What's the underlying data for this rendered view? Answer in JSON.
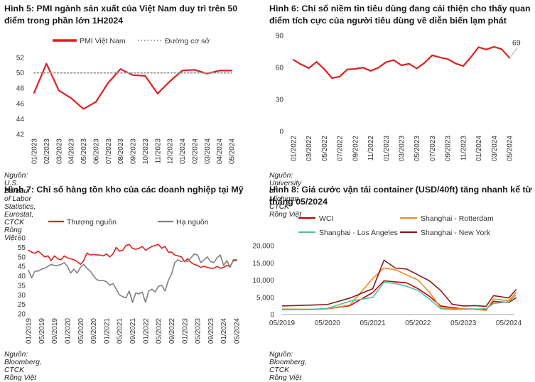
{
  "chart_data": [
    {
      "id": "c5",
      "type": "line",
      "title": "Hình 5: PMI ngành sản xuất của Việt Nam duy trì trên 50 điểm trong phần lớn 1H2024",
      "source": "Nguồn: U.S. Bureau of Labor Statistics, Eurostat, CTCK Rồng Việt",
      "ylim": [
        42,
        52
      ],
      "yticks": [
        42,
        44,
        46,
        48,
        50,
        52
      ],
      "xticks": [
        "01/2023",
        "02/2023",
        "03/2023",
        "04/2023",
        "05/2023",
        "06/2023",
        "07/2023",
        "08/2023",
        "09/2023",
        "10/2023",
        "11/2023",
        "12/2023",
        "01/2024",
        "02/2024",
        "03/2024",
        "04/2024",
        "05/2024"
      ],
      "x": [
        "01/2023",
        "02/2023",
        "03/2023",
        "04/2023",
        "05/2023",
        "06/2023",
        "07/2023",
        "08/2023",
        "09/2023",
        "10/2023",
        "11/2023",
        "12/2023",
        "01/2024",
        "02/2024",
        "03/2024",
        "04/2024",
        "05/2024"
      ],
      "series": [
        {
          "name": "PMI Việt Nam",
          "color": "#e01e1e",
          "style": "solid",
          "values": [
            47.4,
            51.2,
            47.7,
            46.7,
            45.3,
            46.2,
            48.7,
            50.5,
            49.7,
            49.6,
            47.3,
            48.9,
            50.3,
            50.4,
            49.9,
            50.3,
            50.3
          ]
        },
        {
          "name": "Đường cơ sở",
          "color": "#9a9a9a",
          "style": "dotted",
          "values": [
            50,
            50,
            50,
            50,
            50,
            50,
            50,
            50,
            50,
            50,
            50,
            50,
            50,
            50,
            50,
            50,
            50
          ]
        }
      ]
    },
    {
      "id": "c6",
      "type": "line",
      "title": "Hình 6: Chỉ số niềm tin tiêu dùng đang cải thiện cho thấy quan điểm tích cực của người tiêu dùng về diễn biến lạm phát",
      "source": "Nguồn: University of Michigan, CTCK Rồng Việt",
      "ylim": [
        0,
        90
      ],
      "yticks": [
        0,
        30,
        60,
        90
      ],
      "xticks": [
        "01/2022",
        "03/2022",
        "05/2022",
        "07/2022",
        "09/2022",
        "11/2022",
        "01/2023",
        "03/2023",
        "05/2023",
        "07/2023",
        "09/2023",
        "11/2023",
        "01/2024",
        "03/2024",
        "05/2024"
      ],
      "x": [
        "01/2022",
        "02/2022",
        "03/2022",
        "04/2022",
        "05/2022",
        "06/2022",
        "07/2022",
        "08/2022",
        "09/2022",
        "10/2022",
        "11/2022",
        "12/2022",
        "01/2023",
        "02/2023",
        "03/2023",
        "04/2023",
        "05/2023",
        "06/2023",
        "07/2023",
        "08/2023",
        "09/2023",
        "10/2023",
        "11/2023",
        "12/2023",
        "01/2024",
        "02/2024",
        "03/2024",
        "04/2024",
        "05/2024"
      ],
      "annotation": "69",
      "series": [
        {
          "name": "",
          "color": "#e01e1e",
          "style": "solid",
          "values": [
            67.2,
            62.8,
            59.4,
            65.2,
            58.4,
            50.0,
            51.5,
            58.2,
            58.6,
            59.9,
            56.8,
            59.7,
            64.9,
            67.0,
            62.0,
            63.5,
            59.0,
            64.4,
            71.5,
            69.4,
            67.9,
            63.8,
            61.3,
            69.7,
            79.0,
            76.9,
            79.4,
            77.2,
            69.1
          ]
        }
      ]
    },
    {
      "id": "c7",
      "type": "line",
      "title": "Hình 7: Chỉ số hàng tồn kho của các doanh nghiệp tại Mỹ",
      "source": "Nguồn: Bloomberg, CTCK Rồng Việt",
      "ylim": [
        20,
        60
      ],
      "yticks": [
        20,
        25,
        30,
        35,
        40,
        45,
        50,
        55,
        60
      ],
      "xticks": [
        "01/2019",
        "05/2019",
        "09/2019",
        "01/2020",
        "05/2020",
        "09/2020",
        "01/2021",
        "05/2021",
        "09/2021",
        "01/2022",
        "05/2022",
        "09/2022",
        "01/2023",
        "05/2023",
        "09/2023",
        "01/2024",
        "05/2024"
      ],
      "x": [
        "01/2019",
        "02/2019",
        "03/2019",
        "04/2019",
        "05/2019",
        "06/2019",
        "07/2019",
        "08/2019",
        "09/2019",
        "10/2019",
        "11/2019",
        "12/2019",
        "01/2020",
        "02/2020",
        "03/2020",
        "04/2020",
        "05/2020",
        "06/2020",
        "07/2020",
        "08/2020",
        "09/2020",
        "10/2020",
        "11/2020",
        "12/2020",
        "01/2021",
        "02/2021",
        "03/2021",
        "04/2021",
        "05/2021",
        "06/2021",
        "07/2021",
        "08/2021",
        "09/2021",
        "10/2021",
        "11/2021",
        "12/2021",
        "01/2022",
        "02/2022",
        "03/2022",
        "04/2022",
        "05/2022",
        "06/2022",
        "07/2022",
        "08/2022",
        "09/2022",
        "10/2022",
        "11/2022",
        "12/2022",
        "01/2023",
        "02/2023",
        "03/2023",
        "04/2023",
        "05/2023",
        "06/2023",
        "07/2023",
        "08/2023",
        "09/2023",
        "10/2023",
        "11/2023",
        "12/2023",
        "01/2024",
        "02/2024",
        "03/2024",
        "04/2024",
        "05/2024"
      ],
      "series": [
        {
          "name": "Thượng nguồn",
          "color": "#e01e1e",
          "values": [
            53.5,
            52.5,
            51.8,
            53.0,
            51.5,
            50.0,
            50.5,
            48.0,
            50.5,
            49.0,
            48.5,
            50.5,
            49.5,
            49.0,
            48.5,
            47.5,
            46.0,
            48.0,
            52.0,
            51.0,
            51.2,
            51.0,
            51.0,
            50.5,
            51.5,
            50.0,
            51.5,
            55.0,
            53.0,
            53.5,
            56.0,
            56.5,
            54.5,
            54.0,
            54.5,
            55.5,
            53.5,
            54.5,
            55.5,
            56.0,
            56.5,
            54.5,
            55.5,
            52.5,
            52.5,
            51.0,
            50.5,
            50.0,
            47.5,
            49.0,
            47.0,
            46.0,
            45.5,
            44.5,
            45.0,
            44.5,
            44.0,
            44.0,
            45.0,
            44.0,
            44.5,
            45.5,
            45.0,
            48.0,
            48.0
          ]
        },
        {
          "name": "Hạ nguồn",
          "color": "#808080",
          "values": [
            43.0,
            39.0,
            42.5,
            42.5,
            43.5,
            44.0,
            45.0,
            46.0,
            45.5,
            45.5,
            46.0,
            47.0,
            45.0,
            41.5,
            43.5,
            41.5,
            44.5,
            46.0,
            44.0,
            42.5,
            40.0,
            38.0,
            37.5,
            37.5,
            37.0,
            35.0,
            36.0,
            33.0,
            30.0,
            29.0,
            28.5,
            32.0,
            26.0,
            31.0,
            30.5,
            31.5,
            26.0,
            32.0,
            33.0,
            31.5,
            34.5,
            35.0,
            32.0,
            37.5,
            41.0,
            47.0,
            48.5,
            47.5,
            48.0,
            47.5,
            49.5,
            51.5,
            51.0,
            47.0,
            48.5,
            50.0,
            47.5,
            47.0,
            49.5,
            51.0,
            45.5,
            48.0,
            44.5,
            48.5,
            48.5
          ]
        }
      ]
    },
    {
      "id": "c8",
      "type": "line",
      "title": "Hình 8: Giá cước vận tải container (USD/40ft) tăng nhanh kể từ tháng 05/2024",
      "source": "Nguồn: Bloomberg, CTCK Rồng Việt",
      "ylim": [
        0,
        20000
      ],
      "yticks": [
        0,
        5000,
        10000,
        15000,
        20000
      ],
      "ytick_labels": [
        "0",
        "5,000",
        "10,000",
        "15,000",
        "20,000"
      ],
      "xticks": [
        "05/2019",
        "05/2020",
        "05/2021",
        "05/2022",
        "05/2023",
        "05/2024"
      ],
      "x": [
        "05/2019",
        "11/2019",
        "05/2020",
        "11/2020",
        "05/2021",
        "08/2021",
        "11/2021",
        "02/2022",
        "05/2022",
        "08/2022",
        "11/2022",
        "02/2023",
        "05/2023",
        "08/2023",
        "11/2023",
        "01/2024",
        "05/2024",
        "07/2024"
      ],
      "series": [
        {
          "name": "WCI",
          "color": "#c00000",
          "values": [
            1450,
            1400,
            1700,
            2600,
            6400,
            9800,
            9500,
            9200,
            7500,
            5300,
            2500,
            2000,
            1650,
            1600,
            1450,
            3800,
            3500,
            4900
          ]
        },
        {
          "name": "Shanghai - Rotterdam",
          "color": "#f08a1f",
          "values": [
            1600,
            1550,
            1650,
            2800,
            10500,
            13500,
            13000,
            11500,
            10000,
            6500,
            2000,
            1600,
            1700,
            1500,
            1200,
            4500,
            4000,
            6500
          ]
        },
        {
          "name": "Shanghai - Los Angeles",
          "color": "#4ec0a8",
          "values": [
            1400,
            1400,
            1800,
            3900,
            5000,
            9400,
            9000,
            8200,
            7000,
            4500,
            1700,
            1400,
            1500,
            1600,
            1700,
            3200,
            3700,
            5800
          ]
        },
        {
          "name": "Shanghai - New York",
          "color": "#8b1a1a",
          "values": [
            2500,
            2700,
            2900,
            4800,
            7500,
            15800,
            13500,
            13200,
            11500,
            9800,
            7000,
            3000,
            2500,
            2600,
            2400,
            5500,
            4800,
            7300
          ]
        }
      ]
    }
  ]
}
